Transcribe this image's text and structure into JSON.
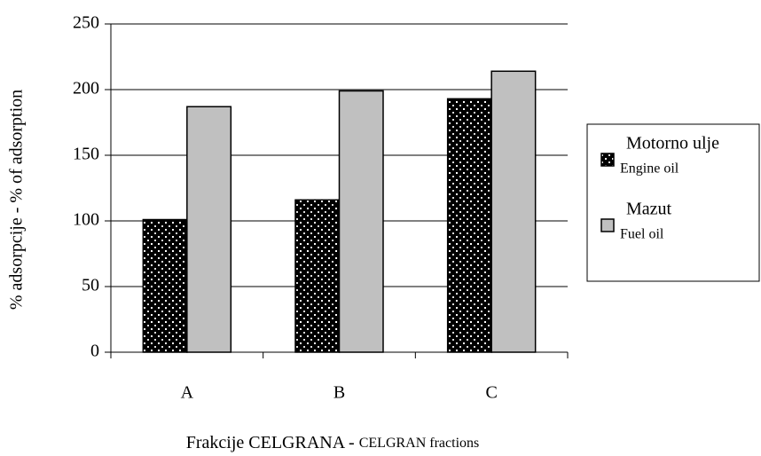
{
  "chart_data": {
    "type": "bar",
    "categories": [
      "A",
      "B",
      "C"
    ],
    "series": [
      {
        "name": "Motorno ulje",
        "subname": "Engine oil",
        "color": "#000000",
        "values": [
          101,
          116,
          193
        ]
      },
      {
        "name": "Mazut",
        "subname": "Fuel oil",
        "color": "#c0c0c0",
        "values": [
          187,
          199,
          214
        ]
      }
    ],
    "ylim": [
      0,
      250
    ],
    "yticks": [
      0,
      50,
      100,
      150,
      200,
      250
    ],
    "grid": true,
    "ylabel": "% adsorpcije  - % of adsorption",
    "xlabel": [
      "Frakcije CELGRANA - ",
      "CELGRAN fractions"
    ],
    "legend": "right"
  }
}
